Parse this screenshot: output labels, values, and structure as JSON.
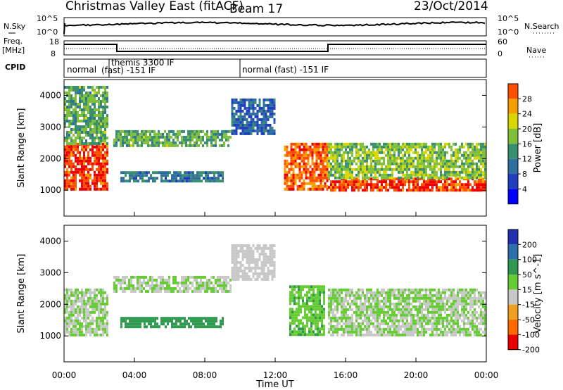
{
  "header": {
    "title": "Christmas Valley East (fitACF)",
    "beam": "Beam 17",
    "date": "23/Oct/2014"
  },
  "sky_panel": {
    "left_label": "N.Sky",
    "left_ticks": [
      "10^5",
      "10^0"
    ],
    "right_label": "N.Search",
    "right_ticks": [
      "10^5",
      "10^0"
    ]
  },
  "freq_panel": {
    "left_label_1": "Freq.",
    "left_label_2": "[MHz]",
    "left_ticks": [
      "18",
      "8"
    ],
    "right_label": "Nave",
    "right_ticks": [
      "60",
      "0"
    ]
  },
  "cpid_panel": {
    "label": "CPID",
    "segments": [
      {
        "start": 0,
        "end": 2.55,
        "text": "normal"
      },
      {
        "start": 2.55,
        "end": 9.95,
        "text": "themis 3300 IF\n(fast) -151 IF"
      },
      {
        "start": 9.95,
        "end": 24,
        "text": "normal (fast) -151 IF"
      }
    ]
  },
  "power_panel": {
    "ylabel": "Slant Range [km]",
    "yticks": [
      "1000",
      "2000",
      "3000",
      "4000"
    ],
    "colorbar_label": "Power [dB]",
    "colorbar_ticks": [
      "4",
      "8",
      "12",
      "16",
      "20",
      "24",
      "28"
    ]
  },
  "velocity_panel": {
    "ylabel": "Slant Range [km]",
    "yticks": [
      "1000",
      "2000",
      "3000",
      "4000"
    ],
    "colorbar_label": "Velocity [m s^-1]",
    "colorbar_ticks": [
      "200",
      "100",
      "50",
      "15",
      "-15",
      "-50",
      "-100",
      "-200"
    ]
  },
  "xaxis": {
    "ticks": [
      "00:00",
      "04:00",
      "08:00",
      "12:00",
      "16:00",
      "20:00",
      "00:00"
    ],
    "label": "Time UT"
  },
  "colors": {
    "power_scale": [
      "#0000ff",
      "#1f3fbf",
      "#2e6fa0",
      "#3a8f70",
      "#7fbf3a",
      "#d8d800",
      "#f6a000",
      "#ff5000",
      "#ee0000"
    ],
    "velocity_scale": [
      "#2030b0",
      "#2d6fa8",
      "#2f9a4f",
      "#66cc33",
      "#c8c8c8",
      "#f0a020",
      "#ff6a00",
      "#e80000"
    ]
  },
  "chart_data": [
    {
      "type": "heatmap",
      "title": "Christmas Valley East (fitACF)",
      "subtitle": "Beam 17 — 23/Oct/2014",
      "quantity": "Power [dB]",
      "xlabel": "Time UT",
      "ylabel": "Slant Range [km]",
      "xlim": [
        "00:00",
        "24:00"
      ],
      "ylim": [
        180,
        4500
      ],
      "clim": [
        0,
        32
      ],
      "regions": [
        {
          "t_start": 0.0,
          "t_end": 2.5,
          "range_low": 1000,
          "range_high": 2500,
          "power": 28
        },
        {
          "t_start": 0.0,
          "t_end": 2.5,
          "range_low": 2500,
          "range_high": 4300,
          "power": 14
        },
        {
          "t_start": 2.8,
          "t_end": 9.5,
          "range_low": 2400,
          "range_high": 2900,
          "power": 14
        },
        {
          "t_start": 3.2,
          "t_end": 9.0,
          "range_low": 1300,
          "range_high": 1600,
          "power": 10
        },
        {
          "t_start": 9.5,
          "t_end": 12.0,
          "range_low": 2800,
          "range_high": 3900,
          "power": 8
        },
        {
          "t_start": 12.5,
          "t_end": 15.0,
          "range_low": 1000,
          "range_high": 2500,
          "power": 26
        },
        {
          "t_start": 15.0,
          "t_end": 24.0,
          "range_low": 1000,
          "range_high": 1400,
          "power": 28
        },
        {
          "t_start": 15.0,
          "t_end": 24.0,
          "range_low": 1400,
          "range_high": 2500,
          "power": 16
        }
      ]
    },
    {
      "type": "heatmap",
      "title": "Christmas Valley East (fitACF)",
      "quantity": "Velocity [m s^-1]",
      "xlabel": "Time UT",
      "ylabel": "Slant Range [km]",
      "xlim": [
        "00:00",
        "24:00"
      ],
      "ylim": [
        180,
        4500
      ],
      "clim": [
        -200,
        200
      ],
      "regions": [
        {
          "t_start": 0.0,
          "t_end": 2.5,
          "range_low": 1000,
          "range_high": 2500,
          "velocity": 0
        },
        {
          "t_start": 2.8,
          "t_end": 9.5,
          "range_low": 2400,
          "range_high": 2900,
          "velocity": 0
        },
        {
          "t_start": 3.2,
          "t_end": 9.0,
          "range_low": 1300,
          "range_high": 1600,
          "velocity": 80
        },
        {
          "t_start": 9.5,
          "t_end": 12.0,
          "range_low": 2800,
          "range_high": 3900,
          "velocity": -20
        },
        {
          "t_start": 12.8,
          "t_end": 14.8,
          "range_low": 1000,
          "range_high": 2600,
          "velocity": 40
        },
        {
          "t_start": 15.0,
          "t_end": 24.0,
          "range_low": 1000,
          "range_high": 2500,
          "velocity": 0
        }
      ]
    }
  ]
}
